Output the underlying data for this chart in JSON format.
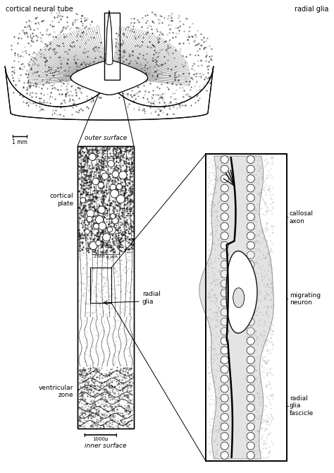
{
  "bg_color": "#ffffff",
  "line_color": "#000000",
  "figure_width": 4.74,
  "figure_height": 6.7,
  "labels": {
    "cortical_neural_tube": "cortical neural tube",
    "radial_glia": "radial glia",
    "outer_surface": "outer surface",
    "inner_surface": "inner surface",
    "cortical_plate": "cortical\nplate",
    "ventricular_zone": "ventricular\nzone",
    "radial_glia_label": "radial\nglia",
    "callosal_axon": "callosal\naxon",
    "migrating_neuron": "migrating\nneuron",
    "radial_glia_fascicle": "radial\nglia\nfascicle",
    "scale_1mm": "1 mm",
    "scale_2500": "2500 μ μm",
    "scale_1000": "1000μ"
  }
}
